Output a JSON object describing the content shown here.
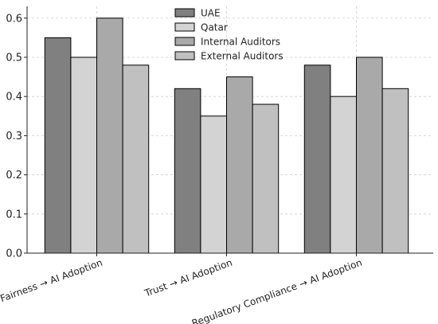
{
  "chart_data": {
    "type": "bar",
    "title": "",
    "xlabel": "",
    "ylabel": "",
    "categories": [
      "Fairness → AI Adoption",
      "Trust → AI Adoption",
      "Regulatory Compliance → AI Adoption"
    ],
    "series": [
      {
        "name": "UAE",
        "values": [
          0.55,
          0.42,
          0.48
        ],
        "color": "#808080"
      },
      {
        "name": "Qatar",
        "values": [
          0.5,
          0.35,
          0.4
        ],
        "color": "#d3d3d3"
      },
      {
        "name": "Internal Auditors",
        "values": [
          0.6,
          0.45,
          0.5
        ],
        "color": "#a9a9a9"
      },
      {
        "name": "External Auditors",
        "values": [
          0.48,
          0.38,
          0.42
        ],
        "color": "#c0c0c0"
      }
    ],
    "ylim": [
      0,
      0.63
    ],
    "yticks": [
      0.0,
      0.1,
      0.2,
      0.3,
      0.4,
      0.5,
      0.6
    ],
    "grid": true,
    "legend_position": "top-center"
  }
}
